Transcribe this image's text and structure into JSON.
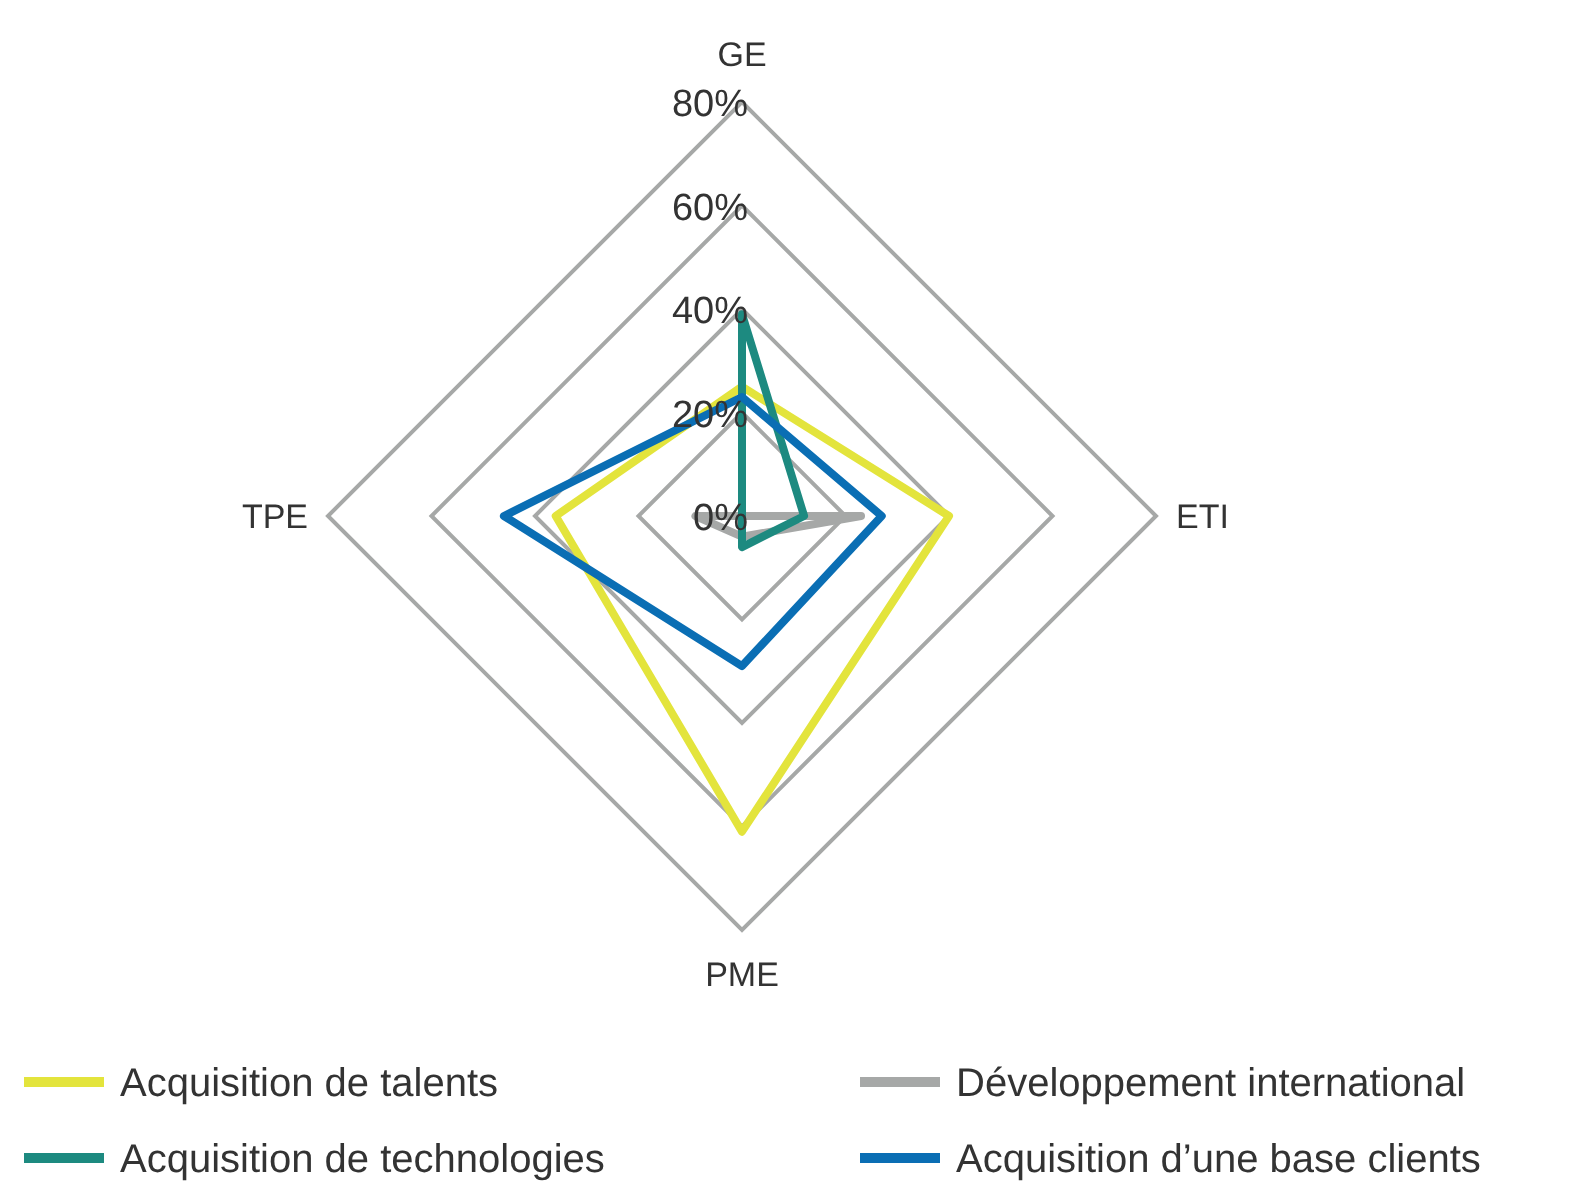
{
  "chart_data": {
    "type": "radar",
    "categories": [
      "GE",
      "ETI",
      "PME",
      "TPE"
    ],
    "ylim": [
      0,
      80
    ],
    "yticks": [
      {
        "value": 0,
        "label": "0%"
      },
      {
        "value": 20,
        "label": "20%"
      },
      {
        "value": 40,
        "label": "40%"
      },
      {
        "value": 60,
        "label": "60%"
      },
      {
        "value": 80,
        "label": "80%"
      }
    ],
    "grid": true,
    "legend": "bottom",
    "marker": "none",
    "series": [
      {
        "name": "Acquisition de talents",
        "color": "#e3e43c",
        "values": [
          25,
          40,
          61,
          36
        ]
      },
      {
        "name": "Développement international",
        "color": "#a6a8a7",
        "values": [
          0,
          23,
          4,
          9
        ]
      },
      {
        "name": "Acquisition de technologies",
        "color": "#1d8a80",
        "values": [
          39,
          12,
          6,
          0
        ]
      },
      {
        "name": "Acquisition d’une base clients",
        "color": "#0a6eb4",
        "values": [
          23,
          27,
          29,
          46
        ]
      }
    ]
  }
}
